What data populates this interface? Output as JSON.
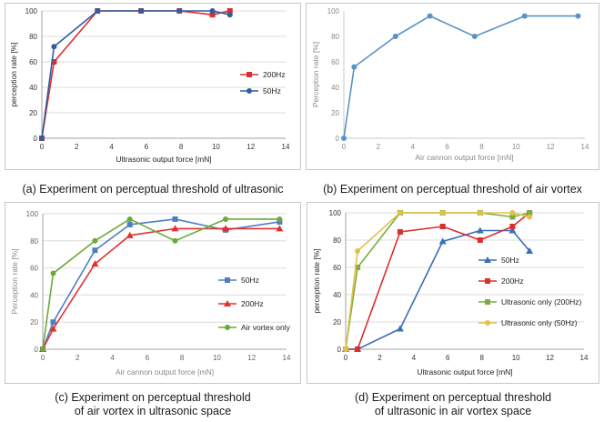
{
  "chart_data": [
    {
      "id": "a",
      "type": "line",
      "xlabel": "Ultrasonic output force [mN]",
      "ylabel": "perception rate [%]",
      "xlim": [
        0,
        14
      ],
      "ylim": [
        0,
        100
      ],
      "xticks": [
        0,
        2,
        4,
        6,
        8,
        10,
        12,
        14
      ],
      "yticks": [
        0,
        20,
        40,
        60,
        80,
        100
      ],
      "grid": true,
      "legend_position": "right",
      "caption": "(a) Experiment on perceptual threshold of ultrasonic",
      "series": [
        {
          "name": "200Hz",
          "color": "#d9302f",
          "marker": "square",
          "x": [
            0,
            0.7,
            3.2,
            5.7,
            7.9,
            9.8,
            10.8
          ],
          "y": [
            0,
            60,
            100,
            100,
            100,
            97,
            100
          ]
        },
        {
          "name": "50Hz",
          "color": "#2e5fa3",
          "marker": "circle",
          "x": [
            0,
            0.7,
            3.2,
            5.7,
            7.9,
            9.8,
            10.8
          ],
          "y": [
            0,
            72,
            100,
            100,
            100,
            100,
            97
          ]
        }
      ]
    },
    {
      "id": "b",
      "type": "line",
      "xlabel": "Air cannon output force [mN]",
      "ylabel": "Perception rate [%]",
      "xlim": [
        0,
        14
      ],
      "ylim": [
        0,
        100
      ],
      "xticks": [
        0,
        2,
        4,
        6,
        8,
        10,
        12,
        14
      ],
      "yticks": [
        0,
        20,
        40,
        60,
        80,
        100
      ],
      "grid": false,
      "legend_position": "none",
      "caption": "(b) Experiment on perceptual threshold of air vortex",
      "series": [
        {
          "name": "Air vortex",
          "color": "#5a93c7",
          "marker": "circle",
          "x": [
            0,
            0.6,
            3,
            5,
            7.6,
            10.5,
            13.6
          ],
          "y": [
            0,
            56,
            80,
            96,
            80,
            96,
            96
          ]
        }
      ]
    },
    {
      "id": "c",
      "type": "line",
      "xlabel": "Air cannon output force [mN]",
      "ylabel": "Perception rate [%]",
      "xlim": [
        0,
        14
      ],
      "ylim": [
        0,
        100
      ],
      "xticks": [
        0,
        2,
        4,
        6,
        8,
        10,
        12,
        14
      ],
      "yticks": [
        0,
        20,
        40,
        60,
        80,
        100
      ],
      "grid": true,
      "legend_position": "right",
      "caption": [
        "(c) Experiment on perceptual threshold",
        "of air vortex in ultrasonic space"
      ],
      "series": [
        {
          "name": "50Hz",
          "color": "#4f7fc0",
          "marker": "square",
          "x": [
            0,
            0.6,
            3,
            5,
            7.6,
            10.5,
            13.6
          ],
          "y": [
            0,
            20,
            73,
            92,
            96,
            88,
            94
          ]
        },
        {
          "name": "200Hz",
          "color": "#e0302f",
          "marker": "triangle",
          "x": [
            0,
            0.6,
            3,
            5,
            7.6,
            10.5,
            13.6
          ],
          "y": [
            0,
            15,
            63,
            84,
            89,
            89,
            89
          ]
        },
        {
          "name": "Air vortex only",
          "color": "#6aaa3a",
          "marker": "circle",
          "x": [
            0,
            0.6,
            3,
            5,
            7.6,
            10.5,
            13.6
          ],
          "y": [
            0,
            56,
            80,
            96,
            80,
            96,
            96
          ]
        }
      ]
    },
    {
      "id": "d",
      "type": "line",
      "xlabel": "Ultrasonic output force [mN]",
      "ylabel": "perception rate [%]",
      "xlim": [
        0,
        14
      ],
      "ylim": [
        0,
        100
      ],
      "xticks": [
        0,
        2,
        4,
        6,
        8,
        10,
        12,
        14
      ],
      "yticks": [
        0,
        20,
        40,
        60,
        80,
        100
      ],
      "grid": true,
      "legend_position": "right",
      "caption": [
        "(d) Experiment on perceptual threshold",
        "of ultrasonic in air vortex space"
      ],
      "series": [
        {
          "name": "50Hz",
          "color": "#3a6fb8",
          "marker": "triangle",
          "x": [
            0,
            0.7,
            3.2,
            5.7,
            7.9,
            9.8,
            10.8
          ],
          "y": [
            0,
            0,
            15,
            79,
            87,
            87,
            72
          ]
        },
        {
          "name": "200Hz",
          "color": "#d9302f",
          "marker": "square",
          "x": [
            0,
            0.7,
            3.2,
            5.7,
            7.9,
            9.8,
            10.8
          ],
          "y": [
            0,
            0,
            86,
            90,
            80,
            90,
            100
          ]
        },
        {
          "name": "Ultrasonic only (200Hz)",
          "color": "#7cad3e",
          "marker": "square",
          "x": [
            0,
            0.7,
            3.2,
            5.7,
            7.9,
            9.8,
            10.8
          ],
          "y": [
            0,
            60,
            100,
            100,
            100,
            97,
            100
          ]
        },
        {
          "name": "Ultrasonic only (50Hz)",
          "color": "#e3c04a",
          "marker": "circle",
          "x": [
            0,
            0.7,
            3.2,
            5.7,
            7.9,
            9.8,
            10.8
          ],
          "y": [
            0,
            72,
            100,
            100,
            100,
            100,
            97
          ]
        }
      ]
    }
  ]
}
